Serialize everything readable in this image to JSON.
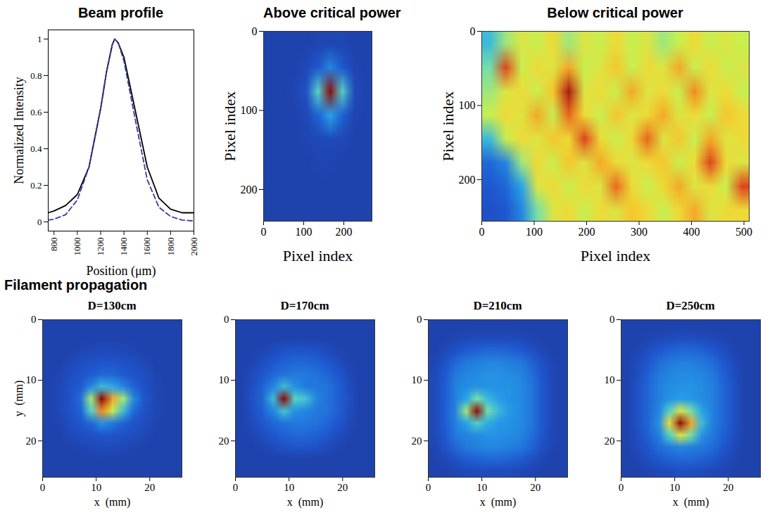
{
  "section_title": "Filament propagation",
  "chart_data": [
    {
      "type": "line",
      "title": "Beam profile",
      "x_label": "Position (μm)",
      "y_label": "Normalized Intensity",
      "x": [
        750,
        800,
        900,
        1000,
        1100,
        1200,
        1250,
        1300,
        1320,
        1350,
        1400,
        1500,
        1600,
        1700,
        1800,
        1900,
        2000
      ],
      "series": [
        {
          "color": "#000000",
          "line_style": "solid",
          "values": [
            0.05,
            0.06,
            0.09,
            0.15,
            0.3,
            0.62,
            0.82,
            0.97,
            1.0,
            0.98,
            0.9,
            0.6,
            0.3,
            0.13,
            0.07,
            0.05,
            0.05
          ]
        },
        {
          "color": "#3b3ba0",
          "line_style": "dashed",
          "values": [
            0.01,
            0.015,
            0.04,
            0.12,
            0.3,
            0.62,
            0.82,
            0.97,
            1.0,
            0.98,
            0.88,
            0.55,
            0.23,
            0.08,
            0.03,
            0.01,
            0.005
          ]
        }
      ],
      "xlim": [
        750,
        2000
      ],
      "xticks": [
        800,
        1000,
        1200,
        1400,
        1600,
        1800,
        2000
      ],
      "ylim": [
        -0.05,
        1.05
      ],
      "yticks": [
        0,
        0.2,
        0.4,
        0.6,
        0.8,
        1
      ]
    },
    {
      "type": "heatmap",
      "title": "Above critical power",
      "x_label": "Pixel index",
      "y_label": "Pixel index",
      "xlim": [
        0,
        270
      ],
      "xticks": [
        0,
        100,
        200
      ],
      "ylim": [
        0,
        240
      ],
      "yticks": [
        0,
        100,
        200
      ],
      "zlim": [
        0,
        1
      ],
      "cells": [
        [
          0.05,
          0.05,
          0.05,
          0.05,
          0.06,
          0.06,
          0.06,
          0.05,
          0.05
        ],
        [
          0.05,
          0.05,
          0.05,
          0.07,
          0.12,
          0.2,
          0.12,
          0.06,
          0.05
        ],
        [
          0.05,
          0.05,
          0.06,
          0.1,
          0.35,
          1.0,
          0.35,
          0.08,
          0.05
        ],
        [
          0.05,
          0.05,
          0.05,
          0.07,
          0.14,
          0.25,
          0.14,
          0.06,
          0.05
        ],
        [
          0.05,
          0.05,
          0.05,
          0.06,
          0.07,
          0.08,
          0.07,
          0.05,
          0.05
        ],
        [
          0.05,
          0.05,
          0.05,
          0.05,
          0.06,
          0.06,
          0.05,
          0.05,
          0.05
        ],
        [
          0.05,
          0.05,
          0.05,
          0.05,
          0.05,
          0.05,
          0.05,
          0.05,
          0.05
        ],
        [
          0.05,
          0.05,
          0.05,
          0.05,
          0.05,
          0.05,
          0.05,
          0.05,
          0.05
        ]
      ]
    },
    {
      "type": "heatmap",
      "title": "Below critical power",
      "x_label": "Pixel index",
      "y_label": "Pixel index",
      "xlim": [
        0,
        510
      ],
      "xticks": [
        0,
        100,
        200,
        300,
        400,
        500
      ],
      "ylim": [
        0,
        256
      ],
      "yticks": [
        0,
        100,
        200
      ],
      "zlim": [
        0,
        1
      ],
      "cells": [
        [
          0.3,
          0.45,
          0.55,
          0.5,
          0.6,
          0.45,
          0.55,
          0.5,
          0.6,
          0.5,
          0.55,
          0.45,
          0.5,
          0.6,
          0.5,
          0.55,
          0.5
        ],
        [
          0.4,
          0.85,
          0.5,
          0.6,
          0.55,
          0.7,
          0.5,
          0.55,
          0.65,
          0.5,
          0.6,
          0.55,
          0.7,
          0.5,
          0.6,
          0.5,
          0.55
        ],
        [
          0.45,
          0.55,
          0.6,
          0.5,
          0.65,
          0.95,
          0.55,
          0.6,
          0.5,
          0.7,
          0.55,
          0.6,
          0.5,
          0.75,
          0.55,
          0.6,
          0.5
        ],
        [
          0.5,
          0.6,
          0.55,
          0.7,
          0.5,
          0.8,
          0.6,
          0.5,
          0.65,
          0.55,
          0.6,
          0.7,
          0.55,
          0.6,
          0.5,
          0.65,
          0.6
        ],
        [
          0.3,
          0.5,
          0.6,
          0.55,
          0.65,
          0.6,
          0.85,
          0.6,
          0.5,
          0.6,
          0.8,
          0.55,
          0.65,
          0.5,
          0.7,
          0.55,
          0.6
        ],
        [
          0.15,
          0.2,
          0.45,
          0.6,
          0.5,
          0.65,
          0.55,
          0.7,
          0.6,
          0.55,
          0.6,
          0.65,
          0.5,
          0.6,
          0.85,
          0.6,
          0.55
        ],
        [
          0.12,
          0.15,
          0.25,
          0.55,
          0.6,
          0.5,
          0.6,
          0.55,
          0.8,
          0.6,
          0.5,
          0.6,
          0.7,
          0.55,
          0.6,
          0.5,
          0.85
        ],
        [
          0.1,
          0.12,
          0.2,
          0.4,
          0.55,
          0.6,
          0.5,
          0.6,
          0.55,
          0.65,
          0.6,
          0.5,
          0.6,
          0.7,
          0.55,
          0.6,
          0.6
        ]
      ]
    },
    {
      "type": "heatmap",
      "title": "D=130cm",
      "x_label": "x  (mm)",
      "y_label": "y  (mm)",
      "xlim": [
        0,
        26
      ],
      "xticks": [
        0,
        10,
        20
      ],
      "ylim": [
        0,
        26
      ],
      "yticks": [
        0,
        10,
        20
      ],
      "zlim": [
        0,
        1
      ],
      "cells": [
        [
          0.05,
          0.05,
          0.05,
          0.05,
          0.05,
          0.05,
          0.05,
          0.05,
          0.05,
          0.05,
          0.05,
          0.05,
          0.05
        ],
        [
          0.05,
          0.05,
          0.05,
          0.05,
          0.05,
          0.05,
          0.05,
          0.05,
          0.05,
          0.05,
          0.05,
          0.05,
          0.05
        ],
        [
          0.05,
          0.05,
          0.05,
          0.06,
          0.07,
          0.08,
          0.08,
          0.07,
          0.06,
          0.05,
          0.05,
          0.05,
          0.05
        ],
        [
          0.05,
          0.05,
          0.07,
          0.09,
          0.1,
          0.11,
          0.11,
          0.1,
          0.09,
          0.07,
          0.05,
          0.05,
          0.05
        ],
        [
          0.05,
          0.06,
          0.09,
          0.11,
          0.13,
          0.15,
          0.15,
          0.13,
          0.11,
          0.09,
          0.06,
          0.05,
          0.05
        ],
        [
          0.05,
          0.07,
          0.1,
          0.13,
          0.2,
          0.3,
          0.26,
          0.2,
          0.14,
          0.1,
          0.07,
          0.05,
          0.05
        ],
        [
          0.05,
          0.07,
          0.1,
          0.16,
          0.45,
          1.0,
          0.7,
          0.45,
          0.2,
          0.11,
          0.07,
          0.05,
          0.05
        ],
        [
          0.05,
          0.07,
          0.1,
          0.14,
          0.35,
          0.75,
          0.5,
          0.3,
          0.15,
          0.1,
          0.07,
          0.05,
          0.05
        ],
        [
          0.05,
          0.06,
          0.09,
          0.12,
          0.15,
          0.22,
          0.18,
          0.14,
          0.11,
          0.09,
          0.06,
          0.05,
          0.05
        ],
        [
          0.05,
          0.05,
          0.07,
          0.09,
          0.1,
          0.11,
          0.11,
          0.1,
          0.09,
          0.07,
          0.05,
          0.05,
          0.05
        ],
        [
          0.05,
          0.05,
          0.05,
          0.06,
          0.07,
          0.08,
          0.08,
          0.07,
          0.06,
          0.05,
          0.05,
          0.05,
          0.05
        ],
        [
          0.05,
          0.05,
          0.05,
          0.05,
          0.05,
          0.05,
          0.05,
          0.05,
          0.05,
          0.05,
          0.05,
          0.05,
          0.05
        ],
        [
          0.05,
          0.05,
          0.05,
          0.05,
          0.05,
          0.05,
          0.05,
          0.05,
          0.05,
          0.05,
          0.05,
          0.05,
          0.05
        ]
      ]
    },
    {
      "type": "heatmap",
      "title": "D=170cm",
      "x_label": "x  (mm)",
      "xlim": [
        0,
        26
      ],
      "xticks": [
        0,
        10,
        20
      ],
      "ylim": [
        0,
        26
      ],
      "yticks": [
        0,
        10,
        20
      ],
      "zlim": [
        0,
        1
      ],
      "cells": [
        [
          0.05,
          0.05,
          0.05,
          0.05,
          0.05,
          0.05,
          0.05,
          0.05,
          0.05,
          0.05,
          0.05,
          0.05,
          0.05
        ],
        [
          0.05,
          0.05,
          0.05,
          0.05,
          0.05,
          0.05,
          0.05,
          0.05,
          0.05,
          0.05,
          0.05,
          0.05,
          0.05
        ],
        [
          0.05,
          0.05,
          0.06,
          0.08,
          0.1,
          0.11,
          0.11,
          0.1,
          0.08,
          0.06,
          0.05,
          0.05,
          0.05
        ],
        [
          0.05,
          0.06,
          0.09,
          0.12,
          0.14,
          0.15,
          0.15,
          0.14,
          0.12,
          0.09,
          0.06,
          0.05,
          0.05
        ],
        [
          0.05,
          0.08,
          0.12,
          0.15,
          0.17,
          0.18,
          0.18,
          0.17,
          0.15,
          0.12,
          0.08,
          0.05,
          0.05
        ],
        [
          0.05,
          0.09,
          0.14,
          0.2,
          0.3,
          0.22,
          0.18,
          0.18,
          0.17,
          0.14,
          0.09,
          0.05,
          0.05
        ],
        [
          0.05,
          0.1,
          0.15,
          0.3,
          1.0,
          0.35,
          0.32,
          0.2,
          0.17,
          0.14,
          0.1,
          0.05,
          0.05
        ],
        [
          0.05,
          0.09,
          0.14,
          0.2,
          0.32,
          0.22,
          0.2,
          0.18,
          0.17,
          0.14,
          0.09,
          0.05,
          0.05
        ],
        [
          0.05,
          0.08,
          0.12,
          0.15,
          0.17,
          0.18,
          0.18,
          0.17,
          0.15,
          0.12,
          0.08,
          0.05,
          0.05
        ],
        [
          0.05,
          0.06,
          0.09,
          0.12,
          0.14,
          0.15,
          0.15,
          0.14,
          0.12,
          0.09,
          0.06,
          0.05,
          0.05
        ],
        [
          0.05,
          0.05,
          0.06,
          0.08,
          0.1,
          0.11,
          0.11,
          0.1,
          0.08,
          0.06,
          0.05,
          0.05,
          0.05
        ],
        [
          0.05,
          0.05,
          0.05,
          0.05,
          0.05,
          0.05,
          0.05,
          0.05,
          0.05,
          0.05,
          0.05,
          0.05,
          0.05
        ],
        [
          0.05,
          0.05,
          0.05,
          0.05,
          0.05,
          0.05,
          0.05,
          0.05,
          0.05,
          0.05,
          0.05,
          0.05,
          0.05
        ]
      ]
    },
    {
      "type": "heatmap",
      "title": "D=210cm",
      "x_label": "x  (mm)",
      "xlim": [
        0,
        26
      ],
      "xticks": [
        0,
        10,
        20
      ],
      "ylim": [
        0,
        26
      ],
      "yticks": [
        0,
        10,
        20
      ],
      "zlim": [
        0,
        1
      ],
      "cells": [
        [
          0.05,
          0.05,
          0.05,
          0.05,
          0.05,
          0.05,
          0.05,
          0.05,
          0.05,
          0.05,
          0.05,
          0.05,
          0.05
        ],
        [
          0.05,
          0.05,
          0.06,
          0.07,
          0.08,
          0.08,
          0.08,
          0.08,
          0.07,
          0.06,
          0.05,
          0.05,
          0.05
        ],
        [
          0.05,
          0.07,
          0.1,
          0.13,
          0.14,
          0.15,
          0.15,
          0.14,
          0.13,
          0.1,
          0.07,
          0.05,
          0.05
        ],
        [
          0.06,
          0.1,
          0.15,
          0.18,
          0.19,
          0.2,
          0.2,
          0.19,
          0.18,
          0.15,
          0.1,
          0.06,
          0.05
        ],
        [
          0.07,
          0.12,
          0.18,
          0.2,
          0.21,
          0.22,
          0.22,
          0.21,
          0.2,
          0.17,
          0.12,
          0.07,
          0.05
        ],
        [
          0.07,
          0.13,
          0.19,
          0.21,
          0.22,
          0.22,
          0.22,
          0.22,
          0.21,
          0.18,
          0.13,
          0.07,
          0.05
        ],
        [
          0.07,
          0.13,
          0.19,
          0.25,
          0.4,
          0.3,
          0.24,
          0.22,
          0.21,
          0.18,
          0.13,
          0.07,
          0.05
        ],
        [
          0.07,
          0.13,
          0.2,
          0.45,
          1.0,
          0.4,
          0.3,
          0.23,
          0.21,
          0.18,
          0.13,
          0.07,
          0.05
        ],
        [
          0.07,
          0.13,
          0.19,
          0.25,
          0.35,
          0.27,
          0.23,
          0.22,
          0.21,
          0.18,
          0.13,
          0.07,
          0.05
        ],
        [
          0.07,
          0.12,
          0.18,
          0.2,
          0.21,
          0.22,
          0.22,
          0.21,
          0.2,
          0.17,
          0.12,
          0.07,
          0.05
        ],
        [
          0.06,
          0.1,
          0.15,
          0.18,
          0.19,
          0.2,
          0.2,
          0.19,
          0.18,
          0.15,
          0.1,
          0.06,
          0.05
        ],
        [
          0.05,
          0.07,
          0.1,
          0.13,
          0.14,
          0.15,
          0.15,
          0.14,
          0.13,
          0.1,
          0.07,
          0.05,
          0.05
        ],
        [
          0.05,
          0.05,
          0.06,
          0.07,
          0.08,
          0.08,
          0.08,
          0.08,
          0.07,
          0.06,
          0.05,
          0.05,
          0.05
        ]
      ]
    },
    {
      "type": "heatmap",
      "title": "D=250cm",
      "x_label": "x  (mm)",
      "xlim": [
        0,
        26
      ],
      "xticks": [
        0,
        10,
        20
      ],
      "ylim": [
        0,
        26
      ],
      "yticks": [
        0,
        10,
        20
      ],
      "zlim": [
        0,
        1
      ],
      "cells": [
        [
          0.05,
          0.05,
          0.05,
          0.05,
          0.05,
          0.05,
          0.05,
          0.05,
          0.05,
          0.05,
          0.05,
          0.05,
          0.05
        ],
        [
          0.05,
          0.05,
          0.06,
          0.07,
          0.08,
          0.09,
          0.09,
          0.08,
          0.07,
          0.06,
          0.05,
          0.05,
          0.05
        ],
        [
          0.05,
          0.06,
          0.09,
          0.12,
          0.14,
          0.15,
          0.15,
          0.14,
          0.12,
          0.09,
          0.06,
          0.05,
          0.05
        ],
        [
          0.05,
          0.08,
          0.12,
          0.16,
          0.18,
          0.19,
          0.19,
          0.18,
          0.16,
          0.12,
          0.08,
          0.05,
          0.05
        ],
        [
          0.05,
          0.09,
          0.14,
          0.18,
          0.2,
          0.21,
          0.21,
          0.2,
          0.18,
          0.14,
          0.09,
          0.05,
          0.05
        ],
        [
          0.05,
          0.1,
          0.15,
          0.19,
          0.21,
          0.22,
          0.22,
          0.21,
          0.19,
          0.15,
          0.1,
          0.05,
          0.05
        ],
        [
          0.05,
          0.1,
          0.15,
          0.19,
          0.22,
          0.24,
          0.23,
          0.21,
          0.19,
          0.15,
          0.1,
          0.05,
          0.05
        ],
        [
          0.05,
          0.1,
          0.15,
          0.2,
          0.35,
          0.55,
          0.4,
          0.25,
          0.19,
          0.15,
          0.1,
          0.05,
          0.05
        ],
        [
          0.05,
          0.1,
          0.15,
          0.22,
          0.6,
          1.0,
          0.7,
          0.3,
          0.19,
          0.15,
          0.1,
          0.05,
          0.05
        ],
        [
          0.05,
          0.09,
          0.14,
          0.19,
          0.35,
          0.55,
          0.4,
          0.22,
          0.18,
          0.14,
          0.09,
          0.05,
          0.05
        ],
        [
          0.05,
          0.08,
          0.12,
          0.16,
          0.18,
          0.2,
          0.19,
          0.18,
          0.16,
          0.12,
          0.08,
          0.05,
          0.05
        ],
        [
          0.05,
          0.06,
          0.09,
          0.12,
          0.14,
          0.15,
          0.15,
          0.14,
          0.12,
          0.09,
          0.06,
          0.05,
          0.05
        ],
        [
          0.05,
          0.05,
          0.06,
          0.07,
          0.08,
          0.09,
          0.09,
          0.08,
          0.07,
          0.06,
          0.05,
          0.05,
          0.05
        ]
      ]
    }
  ]
}
